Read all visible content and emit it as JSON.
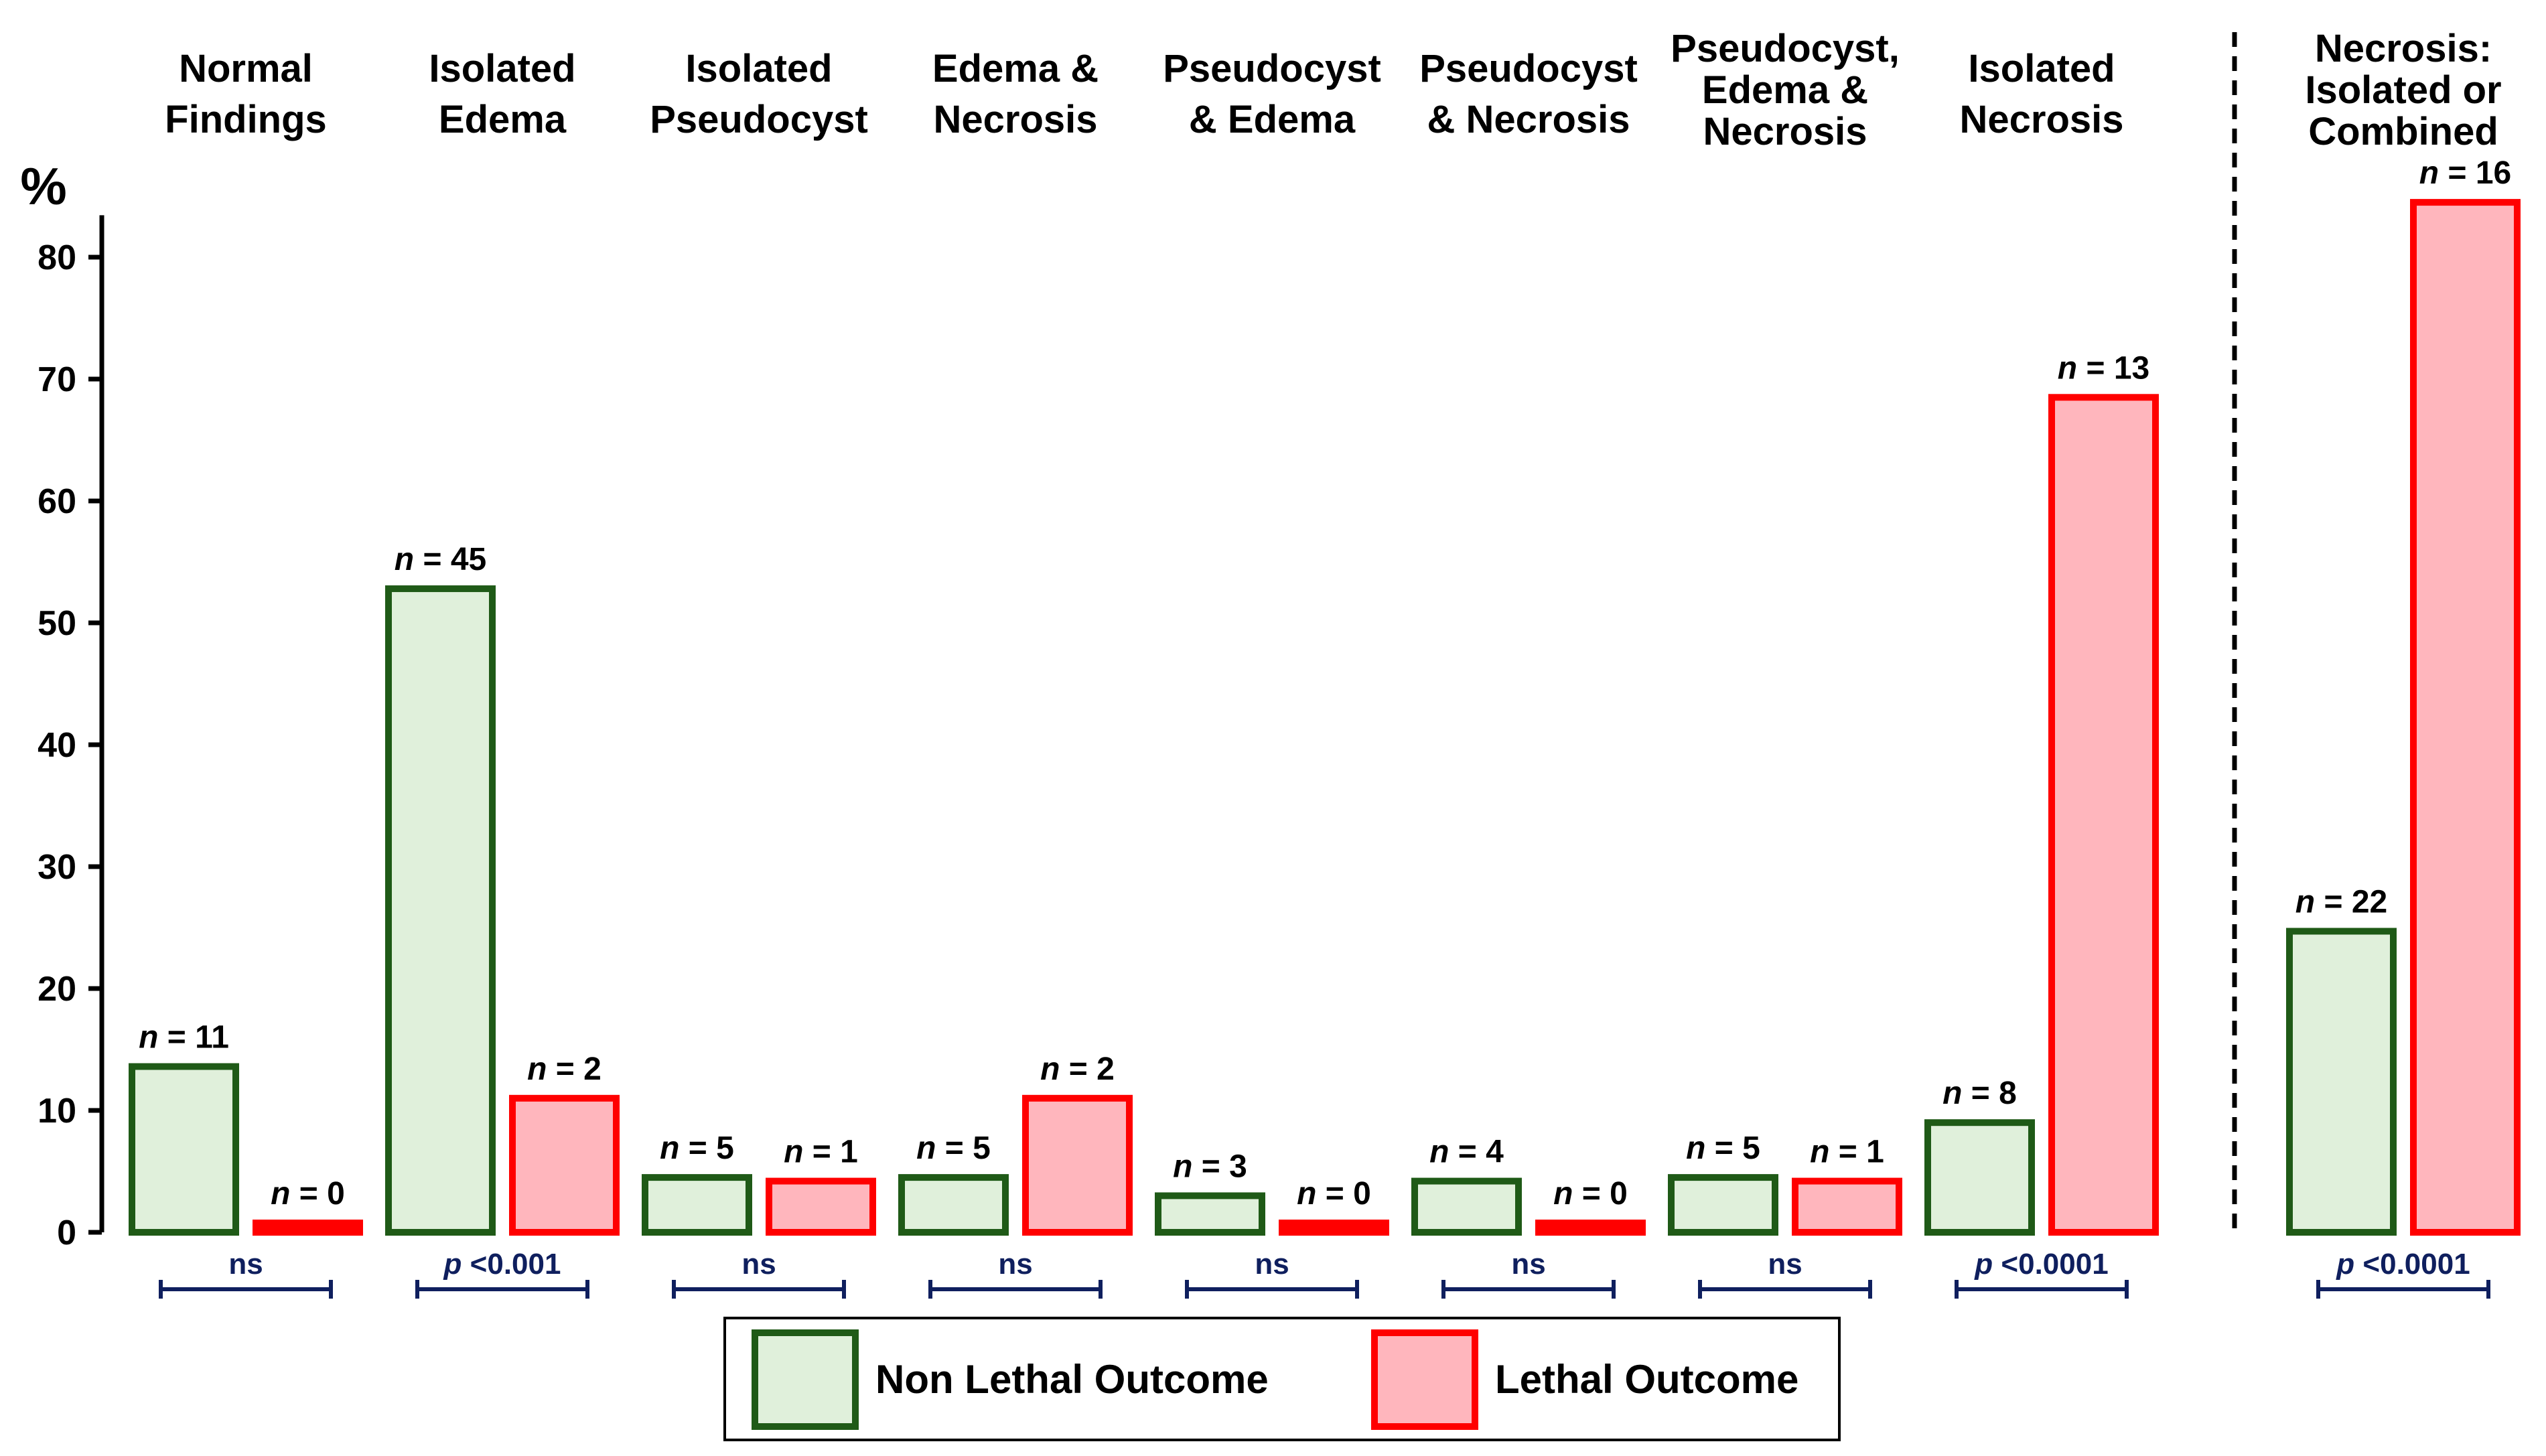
{
  "chart_data": {
    "type": "bar",
    "ylabel": "%",
    "ylim": [
      0,
      83
    ],
    "yticks": [
      0,
      10,
      20,
      30,
      40,
      50,
      60,
      70,
      80
    ],
    "grid": false,
    "categories": [
      {
        "label": [
          "Normal",
          "Findings"
        ],
        "nonlethal": {
          "value": 13.6,
          "n": "11"
        },
        "lethal": {
          "value": 0,
          "n": "0"
        },
        "sig": "ns"
      },
      {
        "label": [
          "Isolated",
          "Edema"
        ],
        "nonlethal": {
          "value": 52.8,
          "n": "45"
        },
        "lethal": {
          "value": 11,
          "n": "2"
        },
        "sig": "p <0.001"
      },
      {
        "label": [
          "Isolated",
          "Pseudocyst"
        ],
        "nonlethal": {
          "value": 4.5,
          "n": "5"
        },
        "lethal": {
          "value": 4.2,
          "n": "1"
        },
        "sig": "ns"
      },
      {
        "label": [
          "Edema &",
          "Necrosis"
        ],
        "nonlethal": {
          "value": 4.5,
          "n": "5"
        },
        "lethal": {
          "value": 11,
          "n": "2"
        },
        "sig": "ns"
      },
      {
        "label": [
          "Pseudocyst",
          "& Edema"
        ],
        "nonlethal": {
          "value": 3,
          "n": "3"
        },
        "lethal": {
          "value": 0,
          "n": "0"
        },
        "sig": "ns"
      },
      {
        "label": [
          "Pseudocyst",
          "& Necrosis"
        ],
        "nonlethal": {
          "value": 4.2,
          "n": "4"
        },
        "lethal": {
          "value": 0,
          "n": "0"
        },
        "sig": "ns"
      },
      {
        "label": [
          "Pseudocyst,",
          "Edema &",
          "Necrosis"
        ],
        "nonlethal": {
          "value": 4.5,
          "n": "5"
        },
        "lethal": {
          "value": 4.2,
          "n": "1"
        },
        "sig": "ns"
      },
      {
        "label": [
          "Isolated",
          "Necrosis"
        ],
        "nonlethal": {
          "value": 9,
          "n": "8"
        },
        "lethal": {
          "value": 68.5,
          "n": "13"
        },
        "sig": "p <0.0001"
      }
    ],
    "combined": {
      "label": [
        "Necrosis:",
        "Isolated or",
        "Combined"
      ],
      "nonlethal": {
        "value": 24.7,
        "n": "22"
      },
      "lethal": {
        "value": 84.5,
        "n": "16"
      },
      "sig": "p <0.0001"
    },
    "n_prefix": "n",
    "legend": {
      "position": "bottom-center",
      "items": [
        {
          "name": "Non Lethal Outcome",
          "fill": "#e0f0db",
          "stroke": "#1f5a17"
        },
        {
          "name": "Lethal Outcome",
          "fill": "#ffb6bd",
          "stroke": "#ff0000"
        }
      ]
    },
    "colors": {
      "axis": "#000000",
      "bracket": "#0f1f5e",
      "divider": "#000000"
    }
  }
}
